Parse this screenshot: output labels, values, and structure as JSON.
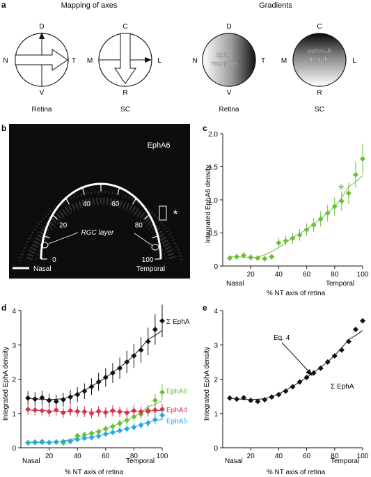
{
  "panel_a": {
    "letter": "a",
    "mapping_title": "Mapping of axes",
    "gradients_title": "Gradients",
    "retina": {
      "top": "D",
      "bottom": "V",
      "left": "N",
      "right": "T",
      "caption": "Retina"
    },
    "sc": {
      "top": "C",
      "bottom": "R",
      "left": "M",
      "right": "L",
      "caption": "SC"
    },
    "grad_retina": {
      "top": "D",
      "bottom": "V",
      "left": "N",
      "right": "T",
      "caption": "Retina",
      "inner_line1": "EphA",
      "inner_line2": "receptors"
    },
    "grad_sc": {
      "top": "C",
      "bottom": "R",
      "left": "M",
      "right": "L",
      "caption": "SC",
      "inner_line1": "ephrin-A",
      "inner_line2": "ligands"
    }
  },
  "panel_b": {
    "letter": "b",
    "title": "EphA6",
    "ticks": [
      "0",
      "20",
      "40",
      "60",
      "80",
      "100"
    ],
    "rgc_label": "RGC layer",
    "nasal": "Nasal",
    "temporal": "Temporal",
    "asterisk": "*"
  },
  "panel_c": {
    "letter": "c",
    "ylabel": "Integrated EphA6 density",
    "xlabel": "% NT axis of retina",
    "nasal": "Nasal",
    "temporal": "Temporal",
    "asterisk": "*",
    "color": "#6abf3a"
  },
  "panel_d": {
    "letter": "d",
    "ylabel": "Integrated EphA density",
    "xlabel": "% NT axis of retina",
    "nasal": "Nasal",
    "temporal": "Temporal"
  },
  "panel_e": {
    "letter": "e",
    "ylabel": "Integrated EphA density",
    "xlabel": "% NT axis of retina",
    "nasal": "Nasal",
    "temporal": "Temporal",
    "eq_label": "Eq. 4",
    "sum_label": "Σ EphA"
  },
  "chart_data": [
    {
      "panel": "c",
      "type": "scatter",
      "xlabel": "% NT axis of retina",
      "ylabel": "Integrated EphA6 density",
      "xlim": [
        0,
        100
      ],
      "ylim": [
        0,
        2.0
      ],
      "xticks": [
        20,
        40,
        60,
        80,
        100
      ],
      "yticks": [
        0,
        0.5,
        1.0,
        1.5,
        2.0
      ],
      "series": [
        {
          "color": "#6abf3a",
          "x": [
            5,
            10,
            15,
            20,
            25,
            30,
            35,
            40,
            45,
            50,
            55,
            60,
            65,
            70,
            75,
            80,
            85,
            90,
            95,
            100
          ],
          "y": [
            0.12,
            0.14,
            0.16,
            0.13,
            0.12,
            0.11,
            0.14,
            0.35,
            0.38,
            0.42,
            0.47,
            0.55,
            0.62,
            0.71,
            0.8,
            0.9,
            0.98,
            1.1,
            1.38,
            1.62
          ]
        }
      ]
    },
    {
      "panel": "d",
      "type": "scatter",
      "xlabel": "% NT axis of retina",
      "ylabel": "Integrated EphA density",
      "xlim": [
        0,
        100
      ],
      "ylim": [
        0,
        4
      ],
      "xticks": [
        20,
        40,
        60,
        80,
        100
      ],
      "yticks": [
        0,
        1,
        2,
        3,
        4
      ],
      "series": [
        {
          "name": "Σ EphA",
          "color": "#111111",
          "x": [
            5,
            10,
            15,
            20,
            25,
            30,
            35,
            40,
            45,
            50,
            55,
            60,
            65,
            70,
            75,
            80,
            85,
            90,
            95,
            100
          ],
          "y": [
            1.45,
            1.42,
            1.46,
            1.38,
            1.35,
            1.4,
            1.48,
            1.55,
            1.65,
            1.78,
            1.92,
            2.05,
            2.18,
            2.32,
            2.5,
            2.68,
            2.85,
            3.1,
            3.45,
            3.7
          ]
        },
        {
          "name": "EphA6",
          "color": "#6abf3a",
          "x": [
            5,
            10,
            15,
            20,
            25,
            30,
            35,
            40,
            45,
            50,
            55,
            60,
            65,
            70,
            75,
            80,
            85,
            90,
            95,
            100
          ],
          "y": [
            0.15,
            0.17,
            0.18,
            0.15,
            0.16,
            0.14,
            0.18,
            0.35,
            0.38,
            0.42,
            0.47,
            0.55,
            0.62,
            0.71,
            0.8,
            0.9,
            0.98,
            1.1,
            1.38,
            1.62
          ]
        },
        {
          "name": "EphA4",
          "color": "#d2344a",
          "x": [
            5,
            10,
            15,
            20,
            25,
            30,
            35,
            40,
            45,
            50,
            55,
            60,
            65,
            70,
            75,
            80,
            85,
            90,
            95,
            100
          ],
          "y": [
            1.12,
            1.1,
            1.08,
            1.05,
            1.1,
            1.02,
            1.08,
            1.06,
            1.05,
            1.0,
            1.06,
            1.03,
            1.08,
            1.05,
            1.02,
            1.08,
            1.05,
            1.06,
            1.1,
            1.12
          ]
        },
        {
          "name": "EphA5",
          "color": "#29a9e0",
          "x": [
            5,
            10,
            15,
            20,
            25,
            30,
            35,
            40,
            45,
            50,
            55,
            60,
            65,
            70,
            75,
            80,
            85,
            90,
            95,
            100
          ],
          "y": [
            0.14,
            0.15,
            0.16,
            0.15,
            0.17,
            0.18,
            0.2,
            0.24,
            0.28,
            0.3,
            0.34,
            0.4,
            0.45,
            0.5,
            0.55,
            0.6,
            0.66,
            0.72,
            0.82,
            0.95
          ]
        }
      ]
    },
    {
      "panel": "e",
      "type": "scatter",
      "xlabel": "% NT axis of retina",
      "ylabel": "Integrated EphA density",
      "xlim": [
        0,
        100
      ],
      "ylim": [
        0,
        4
      ],
      "xticks": [
        20,
        40,
        60,
        80,
        100
      ],
      "yticks": [
        0,
        1,
        2,
        3,
        4
      ],
      "series": [
        {
          "name": "Σ EphA",
          "color": "#111111",
          "x": [
            5,
            10,
            15,
            20,
            25,
            30,
            35,
            40,
            45,
            50,
            55,
            60,
            65,
            70,
            75,
            80,
            85,
            90,
            95,
            100
          ],
          "y": [
            1.45,
            1.42,
            1.46,
            1.38,
            1.35,
            1.4,
            1.48,
            1.55,
            1.65,
            1.78,
            1.92,
            2.05,
            2.18,
            2.32,
            2.5,
            2.68,
            2.85,
            3.1,
            3.45,
            3.7
          ]
        }
      ]
    }
  ]
}
